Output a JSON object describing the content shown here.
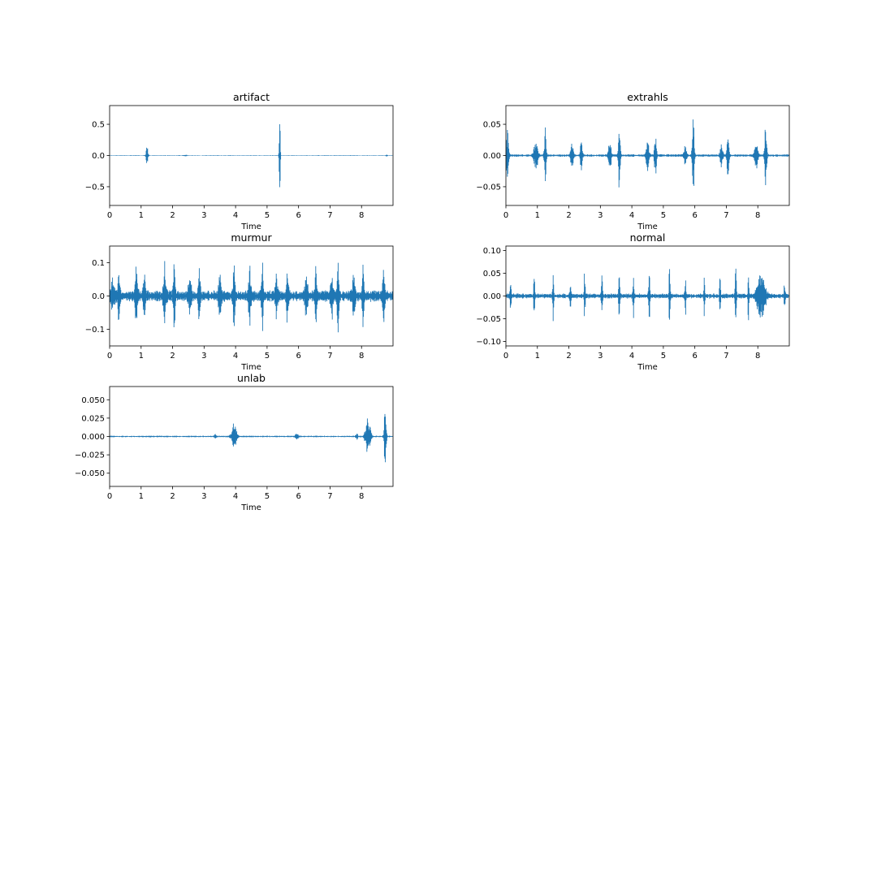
{
  "chart_data": [
    {
      "type": "line",
      "title": "artifact",
      "xlabel": "Time",
      "ylabel": "",
      "xlim": [
        0,
        9
      ],
      "ylim": [
        -0.8,
        0.8
      ],
      "xticks": [
        0,
        1,
        2,
        3,
        4,
        5,
        6,
        7,
        8
      ],
      "yticks": [
        -0.5,
        0.0,
        0.5
      ],
      "ytick_labels": [
        "−0.5",
        "0.0",
        "0.5"
      ],
      "color": "#1f77b4",
      "noise_floor": 0.004,
      "events": [
        {
          "t": 1.19,
          "amp": 0.16,
          "width": 0.05
        },
        {
          "t": 2.4,
          "amp": 0.015,
          "width": 0.08
        },
        {
          "t": 5.4,
          "amp": 0.73,
          "width": 0.03
        },
        {
          "t": 8.8,
          "amp": 0.02,
          "width": 0.03
        }
      ]
    },
    {
      "type": "line",
      "title": "extrahls",
      "xlabel": "Time",
      "ylabel": "",
      "xlim": [
        0,
        9
      ],
      "ylim": [
        -0.08,
        0.08
      ],
      "xticks": [
        0,
        1,
        2,
        3,
        4,
        5,
        6,
        7,
        8
      ],
      "yticks": [
        -0.05,
        0.0,
        0.05
      ],
      "ytick_labels": [
        "−0.05",
        "0.00",
        "0.05"
      ],
      "color": "#1f77b4",
      "noise_floor": 0.0015,
      "events": [
        {
          "t": 0.05,
          "amp": 0.048,
          "width": 0.06
        },
        {
          "t": 0.95,
          "amp": 0.028,
          "width": 0.1
        },
        {
          "t": 1.25,
          "amp": 0.048,
          "width": 0.05
        },
        {
          "t": 2.1,
          "amp": 0.022,
          "width": 0.07
        },
        {
          "t": 2.4,
          "amp": 0.048,
          "width": 0.05
        },
        {
          "t": 3.3,
          "amp": 0.03,
          "width": 0.07
        },
        {
          "t": 3.6,
          "amp": 0.063,
          "width": 0.05
        },
        {
          "t": 4.5,
          "amp": 0.028,
          "width": 0.07
        },
        {
          "t": 4.75,
          "amp": 0.056,
          "width": 0.05
        },
        {
          "t": 5.7,
          "amp": 0.023,
          "width": 0.07
        },
        {
          "t": 5.95,
          "amp": 0.072,
          "width": 0.05
        },
        {
          "t": 6.85,
          "amp": 0.022,
          "width": 0.07
        },
        {
          "t": 7.05,
          "amp": 0.058,
          "width": 0.05
        },
        {
          "t": 7.95,
          "amp": 0.03,
          "width": 0.08
        },
        {
          "t": 8.25,
          "amp": 0.07,
          "width": 0.05
        }
      ]
    },
    {
      "type": "line",
      "title": "murmur",
      "xlabel": "Time",
      "ylabel": "",
      "xlim": [
        0,
        9
      ],
      "ylim": [
        -0.15,
        0.15
      ],
      "xticks": [
        0,
        1,
        2,
        3,
        4,
        5,
        6,
        7,
        8
      ],
      "yticks": [
        -0.1,
        0.0,
        0.1
      ],
      "ytick_labels": [
        "−0.1",
        "0.0",
        "0.1"
      ],
      "color": "#1f77b4",
      "noise_floor": 0.012,
      "events": [
        {
          "t": 0.1,
          "amp": 0.05,
          "width": 0.1
        },
        {
          "t": 0.3,
          "amp": 0.108,
          "width": 0.05
        },
        {
          "t": 0.85,
          "amp": 0.08,
          "width": 0.07
        },
        {
          "t": 1.1,
          "amp": 0.125,
          "width": 0.05
        },
        {
          "t": 1.75,
          "amp": 0.11,
          "width": 0.07
        },
        {
          "t": 2.05,
          "amp": 0.12,
          "width": 0.05
        },
        {
          "t": 2.55,
          "amp": 0.08,
          "width": 0.07
        },
        {
          "t": 2.85,
          "amp": 0.11,
          "width": 0.05
        },
        {
          "t": 3.5,
          "amp": 0.075,
          "width": 0.07
        },
        {
          "t": 3.95,
          "amp": 0.11,
          "width": 0.05
        },
        {
          "t": 4.45,
          "amp": 0.09,
          "width": 0.07
        },
        {
          "t": 4.85,
          "amp": 0.11,
          "width": 0.05
        },
        {
          "t": 5.3,
          "amp": 0.075,
          "width": 0.07
        },
        {
          "t": 5.65,
          "amp": 0.105,
          "width": 0.05
        },
        {
          "t": 6.25,
          "amp": 0.075,
          "width": 0.07
        },
        {
          "t": 6.55,
          "amp": 0.11,
          "width": 0.05
        },
        {
          "t": 7.05,
          "amp": 0.08,
          "width": 0.07
        },
        {
          "t": 7.25,
          "amp": 0.14,
          "width": 0.05
        },
        {
          "t": 7.75,
          "amp": 0.065,
          "width": 0.07
        },
        {
          "t": 8.05,
          "amp": 0.11,
          "width": 0.05
        },
        {
          "t": 8.7,
          "amp": 0.08,
          "width": 0.07
        }
      ]
    },
    {
      "type": "line",
      "title": "normal",
      "xlabel": "Time",
      "ylabel": "",
      "xlim": [
        0,
        9
      ],
      "ylim": [
        -0.11,
        0.11
      ],
      "xticks": [
        0,
        1,
        2,
        3,
        4,
        5,
        6,
        7,
        8
      ],
      "yticks": [
        -0.1,
        -0.05,
        0.0,
        0.05,
        0.1
      ],
      "ytick_labels": [
        "−0.10",
        "−0.05",
        "0.00",
        "0.05",
        "0.10"
      ],
      "color": "#1f77b4",
      "noise_floor": 0.004,
      "events": [
        {
          "t": 0.15,
          "amp": 0.05,
          "width": 0.03
        },
        {
          "t": 0.9,
          "amp": 0.05,
          "width": 0.03
        },
        {
          "t": 1.5,
          "amp": 0.06,
          "width": 0.03
        },
        {
          "t": 2.05,
          "amp": 0.06,
          "width": 0.03
        },
        {
          "t": 2.5,
          "amp": 0.06,
          "width": 0.03
        },
        {
          "t": 3.05,
          "amp": 0.065,
          "width": 0.03
        },
        {
          "t": 3.6,
          "amp": 0.065,
          "width": 0.03
        },
        {
          "t": 4.05,
          "amp": 0.06,
          "width": 0.03
        },
        {
          "t": 4.55,
          "amp": 0.085,
          "width": 0.03
        },
        {
          "t": 5.2,
          "amp": 0.085,
          "width": 0.03
        },
        {
          "t": 5.7,
          "amp": 0.06,
          "width": 0.03
        },
        {
          "t": 6.3,
          "amp": 0.06,
          "width": 0.03
        },
        {
          "t": 6.8,
          "amp": 0.06,
          "width": 0.03
        },
        {
          "t": 7.3,
          "amp": 0.1,
          "width": 0.03
        },
        {
          "t": 7.7,
          "amp": 0.055,
          "width": 0.03
        },
        {
          "t": 8.1,
          "amp": 0.06,
          "width": 0.2
        },
        {
          "t": 8.85,
          "amp": 0.055,
          "width": 0.03
        }
      ]
    },
    {
      "type": "line",
      "title": "unlab",
      "xlabel": "Time",
      "ylabel": "",
      "xlim": [
        0,
        9
      ],
      "ylim": [
        -0.068,
        0.068
      ],
      "xticks": [
        0,
        1,
        2,
        3,
        4,
        5,
        6,
        7,
        8
      ],
      "yticks": [
        -0.05,
        -0.025,
        0.0,
        0.025,
        0.05
      ],
      "ytick_labels": [
        "−0.050",
        "−0.025",
        "0.000",
        "0.025",
        "0.050"
      ],
      "color": "#1f77b4",
      "noise_floor": 0.0008,
      "events": [
        {
          "t": 3.35,
          "amp": 0.004,
          "width": 0.05
        },
        {
          "t": 3.95,
          "amp": 0.022,
          "width": 0.12
        },
        {
          "t": 5.95,
          "amp": 0.004,
          "width": 0.1
        },
        {
          "t": 7.85,
          "amp": 0.004,
          "width": 0.05
        },
        {
          "t": 8.2,
          "amp": 0.028,
          "width": 0.12
        },
        {
          "t": 8.75,
          "amp": 0.063,
          "width": 0.05
        }
      ]
    }
  ]
}
